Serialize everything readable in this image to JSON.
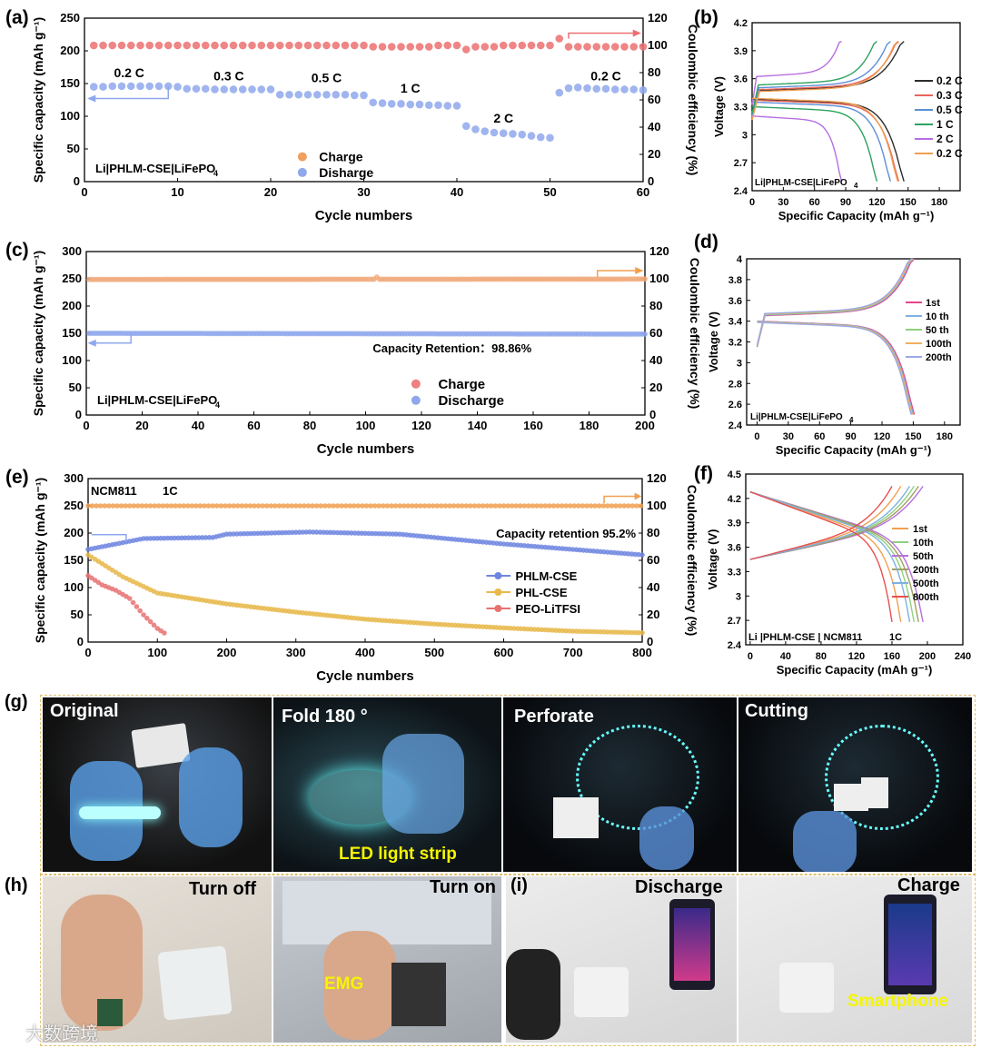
{
  "panel_labels": {
    "a": "(a)",
    "b": "(b)",
    "c": "(c)",
    "d": "(d)",
    "e": "(e)",
    "f": "(f)",
    "g": "(g)",
    "h": "(h)",
    "i": "(i)"
  },
  "chart_data": [
    {
      "id": "a",
      "type": "scatter",
      "xlabel": "Cycle numbers",
      "ylabel": "Specific capacity (mAh g-1)",
      "y2label": "Coulombic efficiency (%)",
      "xlim": [
        0,
        60
      ],
      "ylim": [
        0,
        250
      ],
      "y2lim": [
        0,
        120
      ],
      "xticks": [
        0,
        10,
        20,
        30,
        40,
        50,
        60
      ],
      "yticks": [
        0,
        50,
        100,
        150,
        200,
        250
      ],
      "y2ticks": [
        0,
        20,
        40,
        60,
        80,
        100,
        120
      ],
      "legend": [
        "Charge",
        "Disharge"
      ],
      "cell_label": "Li|PHLM-CSE|LiFePO4",
      "rate_labels": [
        "0.2 C",
        "0.3 C",
        "0.5 C",
        "1 C",
        "2 C",
        "0.2 C"
      ],
      "series": [
        {
          "name": "Charge/Discharge capacity",
          "axis": "left",
          "points": [
            [
              1,
              145
            ],
            [
              2,
              145
            ],
            [
              3,
              146
            ],
            [
              4,
              146
            ],
            [
              5,
              146
            ],
            [
              6,
              146
            ],
            [
              7,
              146
            ],
            [
              8,
              146
            ],
            [
              9,
              146
            ],
            [
              10,
              145
            ],
            [
              11,
              142
            ],
            [
              12,
              142
            ],
            [
              13,
              142
            ],
            [
              14,
              141
            ],
            [
              15,
              141
            ],
            [
              16,
              141
            ],
            [
              17,
              141
            ],
            [
              18,
              141
            ],
            [
              19,
              141
            ],
            [
              20,
              141
            ],
            [
              21,
              133
            ],
            [
              22,
              133
            ],
            [
              23,
              133
            ],
            [
              24,
              133
            ],
            [
              25,
              133
            ],
            [
              26,
              133
            ],
            [
              27,
              133
            ],
            [
              28,
              133
            ],
            [
              29,
              132
            ],
            [
              30,
              132
            ],
            [
              31,
              121
            ],
            [
              32,
              120
            ],
            [
              33,
              119
            ],
            [
              34,
              119
            ],
            [
              35,
              118
            ],
            [
              36,
              118
            ],
            [
              37,
              117
            ],
            [
              38,
              117
            ],
            [
              39,
              116
            ],
            [
              40,
              116
            ],
            [
              41,
              85
            ],
            [
              42,
              80
            ],
            [
              43,
              77
            ],
            [
              44,
              75
            ],
            [
              45,
              74
            ],
            [
              46,
              73
            ],
            [
              47,
              72
            ],
            [
              48,
              70
            ],
            [
              49,
              68
            ],
            [
              50,
              67
            ],
            [
              51,
              136
            ],
            [
              52,
              143
            ],
            [
              53,
              144
            ],
            [
              54,
              143
            ],
            [
              55,
              142
            ],
            [
              56,
              142
            ],
            [
              57,
              141
            ],
            [
              58,
              141
            ],
            [
              59,
              141
            ],
            [
              60,
              140
            ]
          ]
        },
        {
          "name": "Coulombic efficiency",
          "axis": "right",
          "points": [
            [
              1,
              100
            ],
            [
              2,
              100
            ],
            [
              3,
              100
            ],
            [
              4,
              100
            ],
            [
              5,
              100
            ],
            [
              6,
              100
            ],
            [
              7,
              100
            ],
            [
              8,
              100
            ],
            [
              9,
              100
            ],
            [
              10,
              100
            ],
            [
              11,
              100
            ],
            [
              12,
              100
            ],
            [
              13,
              100
            ],
            [
              14,
              100
            ],
            [
              15,
              100
            ],
            [
              16,
              100
            ],
            [
              17,
              100
            ],
            [
              18,
              100
            ],
            [
              19,
              100
            ],
            [
              20,
              100
            ],
            [
              21,
              100
            ],
            [
              22,
              100
            ],
            [
              23,
              100
            ],
            [
              24,
              100
            ],
            [
              25,
              100
            ],
            [
              26,
              100
            ],
            [
              27,
              100
            ],
            [
              28,
              100
            ],
            [
              29,
              100
            ],
            [
              30,
              100
            ],
            [
              31,
              99
            ],
            [
              32,
              99
            ],
            [
              33,
              99
            ],
            [
              34,
              99
            ],
            [
              35,
              99
            ],
            [
              36,
              99
            ],
            [
              37,
              99
            ],
            [
              38,
              100
            ],
            [
              39,
              100
            ],
            [
              40,
              100
            ],
            [
              41,
              97
            ],
            [
              42,
              99
            ],
            [
              43,
              99
            ],
            [
              44,
              99
            ],
            [
              45,
              100
            ],
            [
              46,
              100
            ],
            [
              47,
              100
            ],
            [
              48,
              100
            ],
            [
              49,
              100
            ],
            [
              50,
              100
            ],
            [
              51,
              105
            ],
            [
              52,
              99
            ],
            [
              53,
              99
            ],
            [
              54,
              99
            ],
            [
              55,
              99
            ],
            [
              56,
              99
            ],
            [
              57,
              99
            ],
            [
              58,
              99
            ],
            [
              59,
              99
            ],
            [
              60,
              99
            ]
          ]
        }
      ]
    },
    {
      "id": "b",
      "type": "line",
      "xlabel": "Specific Capacity (mAh g-1)",
      "ylabel": "Voltage (V)",
      "xlim": [
        0,
        200
      ],
      "ylim": [
        2.4,
        4.2
      ],
      "xticks": [
        0,
        30,
        60,
        90,
        120,
        150,
        180
      ],
      "yticks": [
        2.4,
        2.7,
        3.0,
        3.3,
        3.6,
        3.9,
        4.2
      ],
      "cell_label": "Li|PHLM-CSE|LiFePO4",
      "series": [
        {
          "name": "0.2 C",
          "color": "#2b2b2b",
          "capacity": 146
        },
        {
          "name": "0.3 C",
          "color": "#e8645a",
          "capacity": 141
        },
        {
          "name": "0.5 C",
          "color": "#5b8fd6",
          "capacity": 133
        },
        {
          "name": "1 C",
          "color": "#2ca25f",
          "capacity": 120
        },
        {
          "name": "2 C",
          "color": "#b76ee0",
          "capacity": 86
        },
        {
          "name": "0.2 C",
          "color": "#f0a050",
          "capacity": 140
        }
      ]
    },
    {
      "id": "c",
      "type": "scatter",
      "xlabel": "Cycle numbers",
      "ylabel": "Specific capacity (mAh g-1)",
      "y2label": "Coulombic efficiency (%)",
      "xlim": [
        0,
        200
      ],
      "ylim": [
        0,
        300
      ],
      "y2lim": [
        0,
        120
      ],
      "xticks": [
        0,
        20,
        40,
        60,
        80,
        100,
        120,
        140,
        160,
        180,
        200
      ],
      "yticks": [
        0,
        50,
        100,
        150,
        200,
        250,
        300
      ],
      "y2ticks": [
        0,
        20,
        40,
        60,
        80,
        100,
        120
      ],
      "legend": [
        "Charge",
        "Discharge"
      ],
      "cell_label": "Li|PHLM-CSE|LiFePO4",
      "annotation": "Capacity Retention：98.86%",
      "series": [
        {
          "name": "Capacity",
          "axis": "left",
          "start": 150,
          "end": 148.5
        },
        {
          "name": "Coulombic efficiency",
          "axis": "right",
          "start": 99.5,
          "end": 99.8
        }
      ]
    },
    {
      "id": "d",
      "type": "line",
      "xlabel": "Specific Capacity (mAh g-1)",
      "ylabel": "Voltage (V)",
      "xlim": [
        -10,
        195
      ],
      "ylim": [
        2.4,
        4.0
      ],
      "xticks": [
        0,
        30,
        60,
        90,
        120,
        150,
        180
      ],
      "yticks": [
        2.4,
        2.6,
        2.8,
        3.0,
        3.2,
        3.4,
        3.6,
        3.8,
        4.0
      ],
      "cell_label": "Li|PHLM-CSE|LiFePO4",
      "series": [
        {
          "name": "1st",
          "color": "#e8458a",
          "capacity": 151
        },
        {
          "name": "10 th",
          "color": "#7fb0e0",
          "capacity": 150
        },
        {
          "name": "50 th",
          "color": "#8fd07f",
          "capacity": 149
        },
        {
          "name": "100th",
          "color": "#f0b060",
          "capacity": 149
        },
        {
          "name": "200th",
          "color": "#9aa8e8",
          "capacity": 148
        }
      ]
    },
    {
      "id": "e",
      "type": "scatter",
      "xlabel": "Cycle numbers",
      "ylabel": "Specific capacity (mAh g-1)",
      "y2label": "Coulombic efficiency (%)",
      "xlim": [
        0,
        800
      ],
      "ylim": [
        0,
        300
      ],
      "y2lim": [
        0,
        120
      ],
      "xticks": [
        0,
        100,
        200,
        300,
        400,
        500,
        600,
        700,
        800
      ],
      "yticks": [
        0,
        50,
        100,
        150,
        200,
        250,
        300
      ],
      "y2ticks": [
        0,
        20,
        40,
        60,
        80,
        100,
        120
      ],
      "title_left": "NCM811",
      "title_rate": "1C",
      "annotation": "Capacity retention 95.2%",
      "legend": [
        "PHLM-CSE",
        "PHL-CSE",
        "PEO-LiTFSI"
      ],
      "series": [
        {
          "name": "PHLM-CSE",
          "color": "#6f86e0",
          "points": [
            [
              0,
              170
            ],
            [
              40,
              180
            ],
            [
              80,
              190
            ],
            [
              180,
              192
            ],
            [
              200,
              198
            ],
            [
              320,
              202
            ],
            [
              450,
              198
            ],
            [
              600,
              180
            ],
            [
              800,
              160
            ]
          ]
        },
        {
          "name": "PHL-CSE",
          "color": "#e8b84a",
          "points": [
            [
              0,
              160
            ],
            [
              50,
              120
            ],
            [
              100,
              90
            ],
            [
              200,
              70
            ],
            [
              300,
              55
            ],
            [
              400,
              42
            ],
            [
              500,
              33
            ],
            [
              600,
              26
            ],
            [
              700,
              20
            ],
            [
              800,
              17
            ]
          ]
        },
        {
          "name": "PEO-LiTFSI",
          "color": "#e87272",
          "points": [
            [
              0,
              122
            ],
            [
              20,
              105
            ],
            [
              40,
              95
            ],
            [
              60,
              80
            ],
            [
              80,
              50
            ],
            [
              100,
              25
            ],
            [
              112,
              15
            ]
          ]
        },
        {
          "name": "Coulombic efficiency",
          "color": "#f0a050",
          "axis": "right",
          "value": 100
        }
      ]
    },
    {
      "id": "f",
      "type": "line",
      "xlabel": "Specific Capacity (mAh g-1)",
      "ylabel": "Voltage (V)",
      "xlim": [
        -5,
        240
      ],
      "ylim": [
        2.4,
        4.5
      ],
      "xticks": [
        0,
        40,
        80,
        120,
        160,
        200,
        240
      ],
      "yticks": [
        2.4,
        2.7,
        3.0,
        3.3,
        3.6,
        3.9,
        4.2,
        4.5
      ],
      "cell_label": "Li |PHLM-CSE | NCM811",
      "rate": "1C",
      "series": [
        {
          "name": "1st",
          "color": "#f0a050",
          "capacity": 170
        },
        {
          "name": "10th",
          "color": "#8fd07f",
          "capacity": 185
        },
        {
          "name": "50th",
          "color": "#b76ee0",
          "capacity": 195
        },
        {
          "name": "200th",
          "color": "#a0a060",
          "capacity": 190
        },
        {
          "name": "500th",
          "color": "#7fb0e0",
          "capacity": 180
        },
        {
          "name": "800th",
          "color": "#e85050",
          "capacity": 160
        }
      ]
    }
  ],
  "photos": {
    "g": [
      "Original",
      "Fold 180 °",
      "Perforate",
      "Cutting"
    ],
    "g_caption": "LED light strip",
    "h": [
      "Turn off",
      "Turn on"
    ],
    "h_caption": "EMG",
    "i": [
      "Discharge",
      "Charge"
    ],
    "i_caption": "Smartphone",
    "watermark": "大数跨境"
  },
  "colors": {
    "charge_a": "#f0a060",
    "discharge_a": "#8fa8ec",
    "ce_a": "#ec7070",
    "arrow_blue": "#8fa8ec",
    "arrow_red": "#ec7070",
    "arrow_orange": "#f0a050",
    "frame": "#e0c070",
    "yellow": "#f5f500"
  }
}
